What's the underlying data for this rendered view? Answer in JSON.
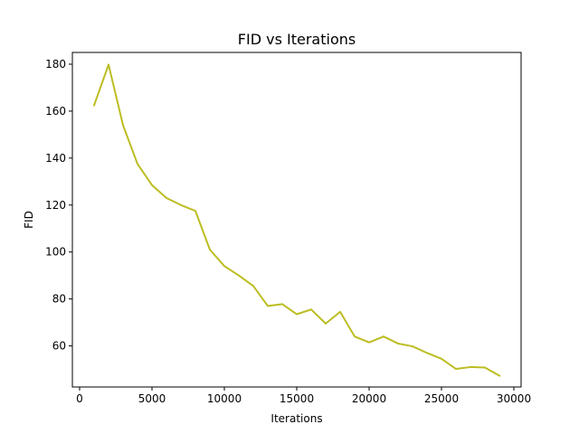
{
  "chart_data": {
    "type": "line",
    "title": "FID vs Iterations",
    "xlabel": "Iterations",
    "ylabel": "FID",
    "xlim": [
      -500,
      30500
    ],
    "ylim": [
      42.5,
      185
    ],
    "x_ticks": [
      0,
      5000,
      10000,
      15000,
      20000,
      25000,
      30000
    ],
    "y_ticks": [
      60,
      80,
      100,
      120,
      140,
      160,
      180
    ],
    "grid": false,
    "series": [
      {
        "name": "FID",
        "color": "#bcbd22",
        "x": [
          1000,
          2000,
          3000,
          4000,
          5000,
          6000,
          7000,
          8000,
          9000,
          10000,
          11000,
          12000,
          13000,
          14000,
          15000,
          16000,
          17000,
          18000,
          19000,
          20000,
          21000,
          22000,
          23000,
          24000,
          25000,
          26000,
          27000,
          28000,
          29000
        ],
        "values": [
          162.5,
          179.8,
          154,
          137.5,
          128.5,
          123,
          120,
          117.5,
          101,
          94,
          90,
          85.5,
          77,
          77.8,
          73.5,
          75.5,
          69.5,
          74.5,
          64,
          61.5,
          64,
          61,
          59.8,
          57,
          54.5,
          50.2,
          51,
          50.8,
          47.3
        ]
      }
    ]
  }
}
